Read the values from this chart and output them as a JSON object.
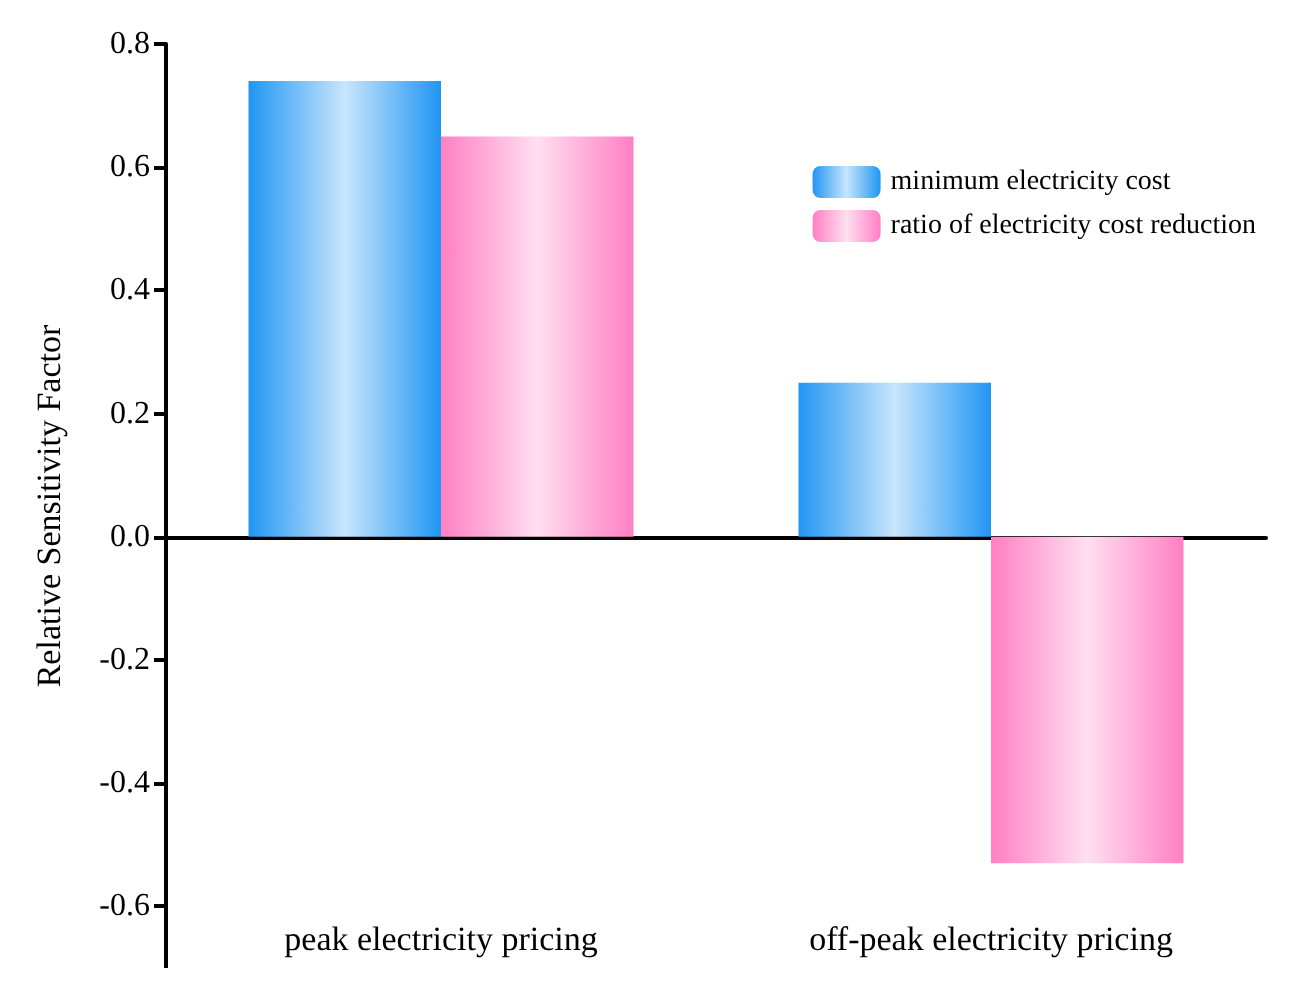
{
  "chart_data": {
    "type": "bar",
    "ylabel": "Relative Sensitivity Factor",
    "categories": [
      "peak electricity pricing",
      "off-peak electricity pricing"
    ],
    "series": [
      {
        "name": "minimum electricity cost",
        "color": "#2196f3",
        "values": [
          0.74,
          0.25
        ]
      },
      {
        "name": "ratio of electricity cost reduction",
        "color": "#ff7fc4",
        "values": [
          0.65,
          -0.53
        ]
      }
    ],
    "ylim": [
      -0.7,
      0.8
    ],
    "yticks": [
      -0.6,
      -0.4,
      -0.2,
      {
        "value": 0,
        "label": "0.0"
      },
      0.2,
      0.4,
      0.6,
      0.8
    ],
    "legend": "top right"
  }
}
